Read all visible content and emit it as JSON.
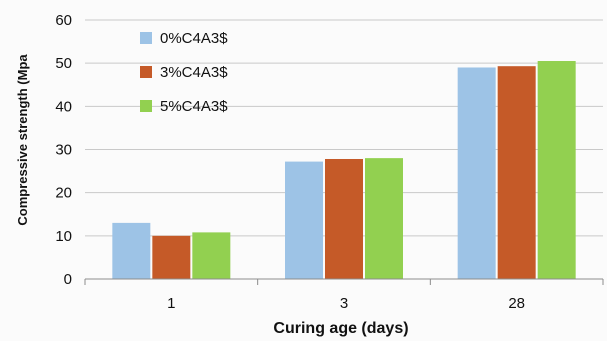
{
  "chart_data": {
    "type": "bar",
    "title": "",
    "xlabel": "Curing age (days)",
    "ylabel": "Compressive strength (Mpa",
    "categories": [
      "1",
      "3",
      "28"
    ],
    "ylim": [
      0,
      60
    ],
    "yticks": [
      0,
      10,
      20,
      30,
      40,
      50,
      60
    ],
    "grid": true,
    "legend_position": "top-left",
    "series": [
      {
        "name": "0%C4A3$",
        "color": "#9dc3e6",
        "values": [
          13,
          27.2,
          49
        ]
      },
      {
        "name": "3%C4A3$",
        "color": "#c55a28",
        "values": [
          10,
          27.8,
          49.3
        ]
      },
      {
        "name": "5%C4A3$",
        "color": "#92d050",
        "values": [
          10.8,
          28,
          50.5
        ]
      }
    ]
  }
}
